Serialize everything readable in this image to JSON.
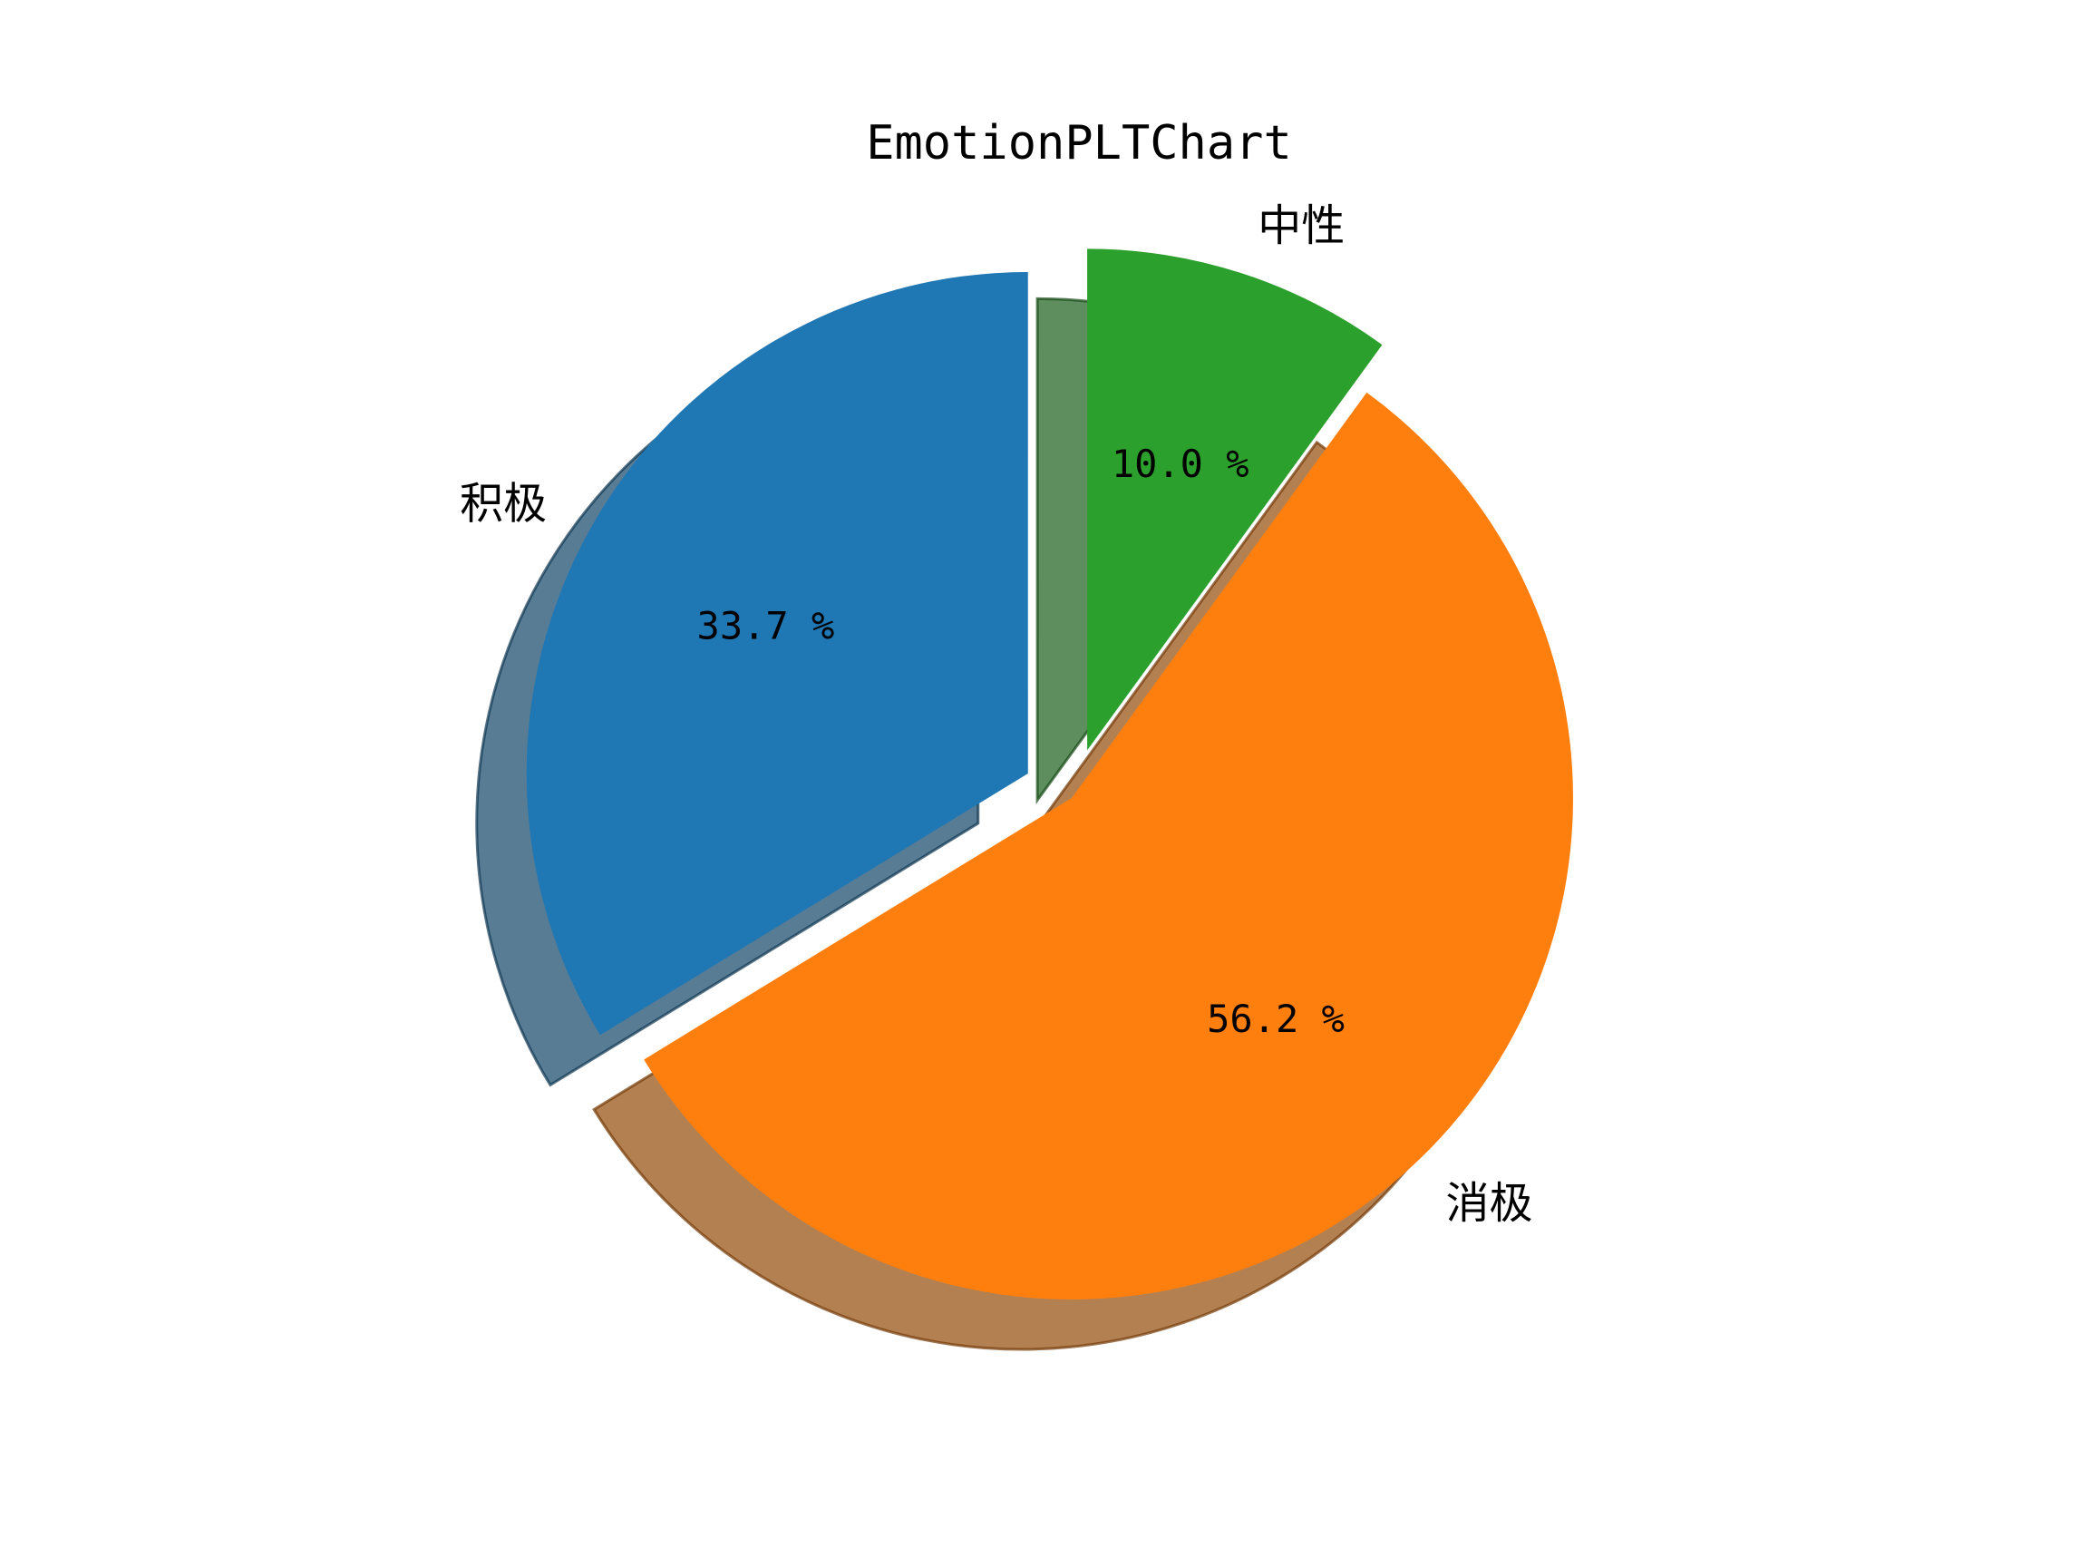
{
  "chart_data": {
    "type": "pie",
    "title": "EmotionPLTChart",
    "categories": [
      "积极",
      "消极",
      "中性"
    ],
    "values": [
      33.7,
      56.2,
      10.0
    ],
    "value_labels": [
      "33.7 %",
      "56.2 %",
      "10.0 %"
    ],
    "explode": [
      0.1,
      0,
      0.1
    ],
    "start_angle_deg": 90,
    "direction": "counterclockwise",
    "shadow": true,
    "colors": [
      "#1f77b4",
      "#ff7f0e",
      "#2ca02c"
    ]
  }
}
